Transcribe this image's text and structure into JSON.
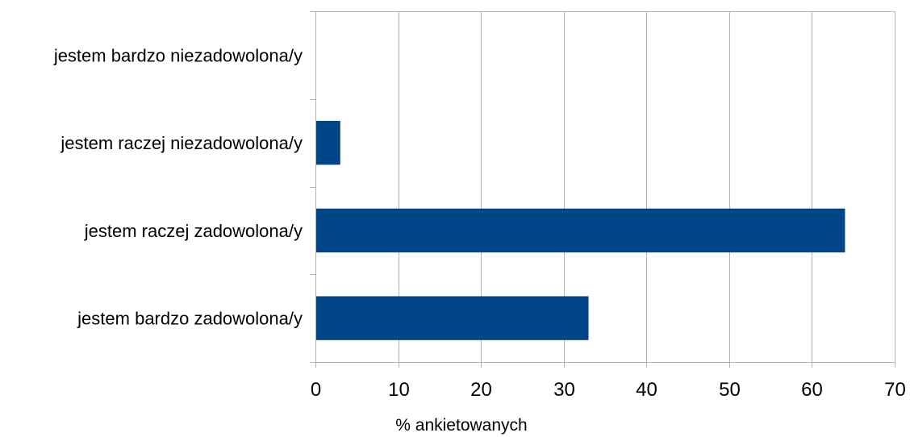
{
  "chart_data": {
    "type": "bar",
    "orientation": "horizontal",
    "categories": [
      "jestem bardzo zadowolona/y",
      "jestem raczej zadowolona/y",
      "jestem raczej niezadowolona/y",
      "jestem bardzo niezadowolona/y"
    ],
    "values": [
      33,
      64,
      3,
      0
    ],
    "xlabel": "% ankietowanych",
    "ylabel": "",
    "xlim": [
      0,
      70
    ],
    "xticks": [
      0,
      10,
      20,
      30,
      40,
      50,
      60,
      70
    ],
    "xtick_labels": [
      "0",
      "10",
      "20",
      "30",
      "40",
      "50",
      "60",
      "70"
    ],
    "grid": "vertical",
    "bar_color": "#004586"
  }
}
